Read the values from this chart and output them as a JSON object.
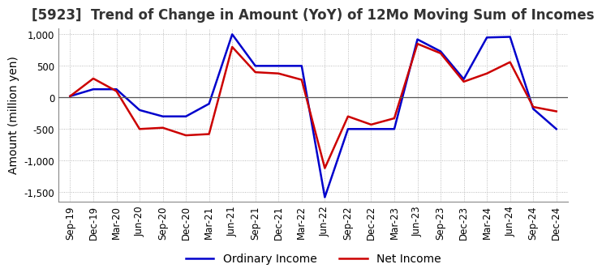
{
  "title": "[5923]  Trend of Change in Amount (YoY) of 12Mo Moving Sum of Incomes",
  "ylabel": "Amount (million yen)",
  "ylim": [
    -1650,
    1100
  ],
  "yticks": [
    -1500,
    -1000,
    -500,
    0,
    500,
    1000
  ],
  "x_labels": [
    "Sep-19",
    "Dec-19",
    "Mar-20",
    "Jun-20",
    "Sep-20",
    "Dec-20",
    "Mar-21",
    "Jun-21",
    "Sep-21",
    "Dec-21",
    "Mar-22",
    "Jun-22",
    "Sep-22",
    "Dec-22",
    "Mar-23",
    "Jun-23",
    "Sep-23",
    "Dec-23",
    "Mar-24",
    "Jun-24",
    "Sep-24",
    "Dec-24"
  ],
  "ordinary_income": [
    20,
    130,
    130,
    -200,
    -300,
    -300,
    -100,
    1000,
    500,
    500,
    500,
    -1580,
    -500,
    -500,
    -500,
    920,
    730,
    290,
    950,
    960,
    -180,
    -500
  ],
  "net_income": [
    20,
    300,
    100,
    -500,
    -480,
    -600,
    -580,
    800,
    400,
    380,
    280,
    -1120,
    -300,
    -430,
    -330,
    850,
    700,
    250,
    380,
    560,
    -150,
    -220
  ],
  "ordinary_color": "#0000cc",
  "net_color": "#cc0000",
  "grid_color": "#aaaaaa",
  "background_color": "#ffffff",
  "legend_labels": [
    "Ordinary Income",
    "Net Income"
  ],
  "title_fontsize": 12,
  "label_fontsize": 10,
  "tick_fontsize": 8.5
}
